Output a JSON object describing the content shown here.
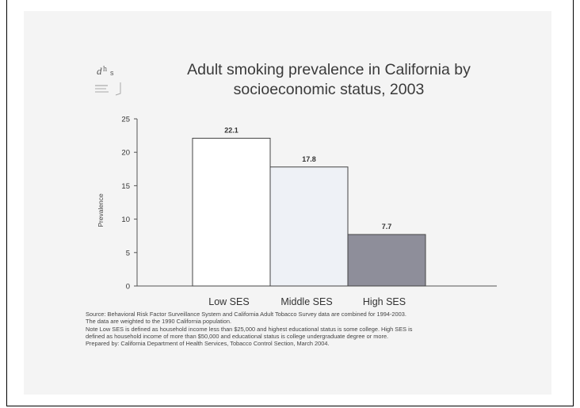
{
  "title_line1": "Adult smoking prevalence in California by",
  "title_line2": "socioeconomic status, 2003",
  "logo": {
    "icon": "dhs-logo-icon",
    "text": "dhs"
  },
  "chart_data": {
    "type": "bar",
    "categories": [
      "Low SES",
      "Middle SES",
      "High SES"
    ],
    "values": [
      22.1,
      17.8,
      7.7
    ],
    "data_labels": [
      "22.1",
      "17.8",
      "7.7"
    ],
    "ylabel": "Prevalence",
    "xlabel": "",
    "ylim": [
      0,
      25
    ],
    "yticks": [
      0,
      5,
      10,
      15,
      20,
      25
    ],
    "bar_colors": [
      "#ffffff",
      "#eef1f6",
      "#8e8e9a"
    ],
    "grid": false,
    "legend": "none"
  },
  "source_lines": [
    "Source: Behavioral Risk Factor Surveillance System and California Adult Tobacco Survey data are combined for 1994-2003.",
    "The data are weighted to the 1990 California population.",
    "Note Low SES is defined as household income less than $25,000 and highest educational status is some college.  High SES is",
    "defined as household income of more than $50,000 and educational status is college undergraduate degree or more.",
    "Prepared by:  California Department of Health Services, Tobacco Control Section, March 2004."
  ]
}
